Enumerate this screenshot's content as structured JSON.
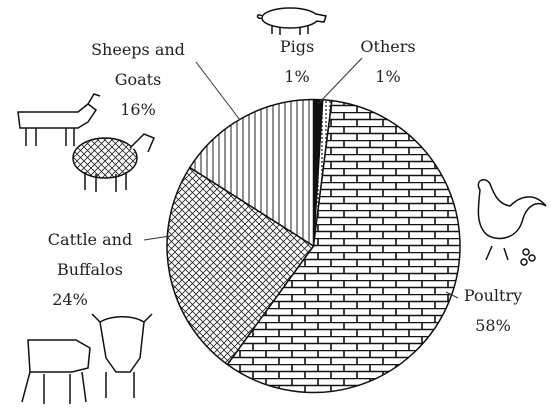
{
  "chart_data": {
    "type": "pie",
    "categories": [
      "Pigs",
      "Others",
      "Poultry",
      "Cattle and Buffalos",
      "Sheeps and Goats"
    ],
    "values": [
      1,
      1,
      58,
      24,
      16
    ],
    "value_labels": [
      "1%",
      "1%",
      "58%",
      "24%",
      "16%"
    ]
  }
}
